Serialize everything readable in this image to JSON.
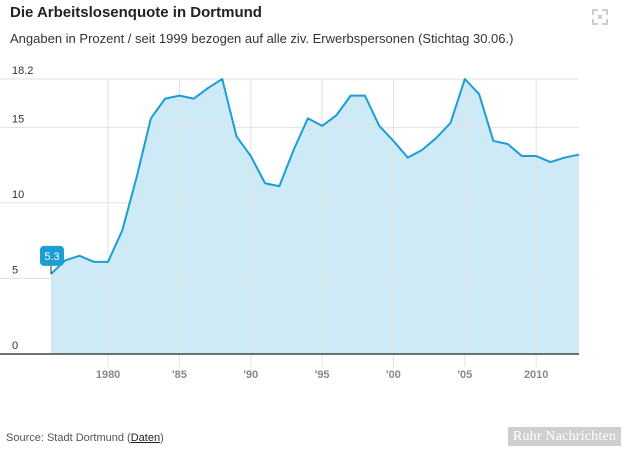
{
  "header": {
    "title": "Die Arbeitslosenquote in Dortmund",
    "subtitle": "Angaben in Prozent / seit 1999 bezogen auf alle ziv. Erwerbspersonen (Stichtag 30.06.)"
  },
  "icons": {
    "expand": "expand-icon"
  },
  "footer": {
    "source_prefix": "Source: Stadt Dortmund (",
    "source_link": "Daten",
    "source_suffix": ")",
    "brand": "Ruhr Nachrichten"
  },
  "chart_data": {
    "type": "area",
    "title": "Die Arbeitslosenquote in Dortmund",
    "subtitle": "Angaben in Prozent / seit 1999 bezogen auf alle ziv. Erwerbspersonen (Stichtag 30.06.)",
    "xlabel": "",
    "ylabel": "",
    "xlim": [
      1976,
      2013
    ],
    "ylim": [
      0,
      18.2
    ],
    "y_ticks": [
      0,
      5,
      10,
      15,
      18.2
    ],
    "x_ticks": [
      {
        "value": 1980,
        "label": "1980"
      },
      {
        "value": 1985,
        "label": "'85"
      },
      {
        "value": 1990,
        "label": "'90"
      },
      {
        "value": 1995,
        "label": "'95"
      },
      {
        "value": 2000,
        "label": "'00"
      },
      {
        "value": 2005,
        "label": "'05"
      },
      {
        "value": 2010,
        "label": "2010"
      }
    ],
    "grid": true,
    "colors": {
      "line": "#1a9ed4",
      "fill": "#cdeaf6",
      "grid": "#e2e2e2",
      "callout": "#1a9ed4"
    },
    "annotation": {
      "x": 1976,
      "y": 5.3,
      "label": "5.3"
    },
    "series": [
      {
        "x": [
          1976,
          1977,
          1978,
          1979,
          1980,
          1981,
          1982,
          1983,
          1984,
          1985,
          1986,
          1987,
          1988,
          1989,
          1990,
          1991,
          1992,
          1993,
          1994,
          1995,
          1996,
          1997,
          1998,
          1999,
          2000,
          2001,
          2002,
          2003,
          2004,
          2005,
          2006,
          2007,
          2008,
          2009,
          2010,
          2011,
          2012,
          2013
        ],
        "values": [
          5.3,
          6.2,
          6.5,
          6.1,
          6.1,
          8.2,
          11.7,
          15.6,
          16.9,
          17.1,
          16.9,
          17.6,
          18.2,
          14.4,
          13.1,
          11.3,
          11.1,
          13.5,
          15.6,
          15.1,
          15.8,
          17.1,
          17.1,
          15.1,
          14.1,
          13.0,
          13.5,
          14.3,
          15.3,
          18.2,
          17.2,
          14.1,
          13.9,
          13.1,
          13.1,
          12.7,
          13.0,
          13.2
        ]
      }
    ]
  }
}
